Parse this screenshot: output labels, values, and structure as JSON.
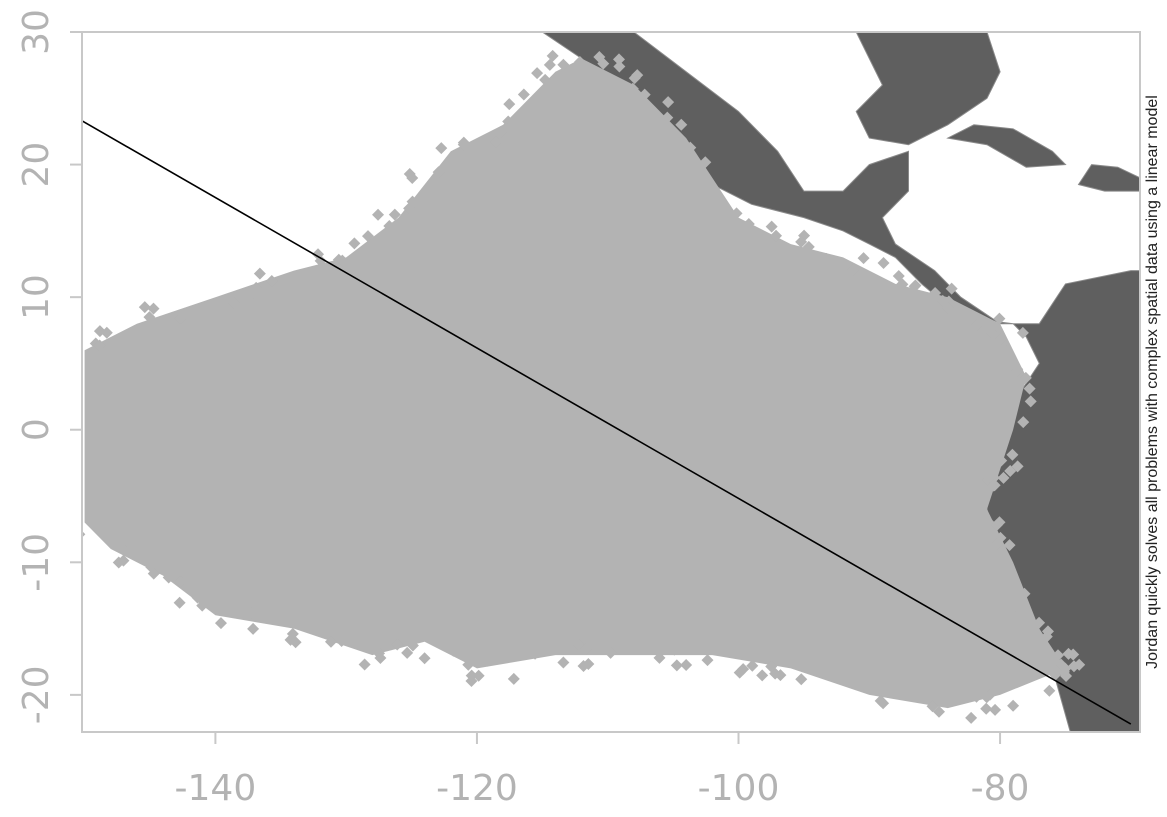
{
  "chart_data": {
    "type": "scatter",
    "title": "",
    "xlabel": "",
    "ylabel": "",
    "xlim": [
      -150.2,
      -69.3
    ],
    "ylim": [
      -22.8,
      30.0
    ],
    "xticks": [
      -140,
      -120,
      -100,
      -80
    ],
    "yticks": [
      30,
      20,
      10,
      0,
      -10,
      -20
    ],
    "x_tick_labels": [
      "-140",
      "-120",
      "-100",
      "-80"
    ],
    "y_tick_labels": [
      "30",
      "20",
      "10",
      "0",
      "-10",
      "-20"
    ],
    "grid": false,
    "point_color": "#b3b3b3",
    "land_color": "#5f5f5f",
    "line_color": "#000000",
    "background": "#ffffff",
    "points_region": {
      "description": "dense cloud of observation points over the eastern tropical Pacific",
      "top_edge": [
        [
          -150,
          6
        ],
        [
          -146,
          8
        ],
        [
          -140,
          10
        ],
        [
          -134,
          12
        ],
        [
          -130,
          13
        ],
        [
          -126,
          16
        ],
        [
          -122,
          21
        ],
        [
          -118,
          23
        ],
        [
          -114,
          27
        ],
        [
          -112,
          28
        ],
        [
          -108,
          26
        ],
        [
          -104,
          22
        ],
        [
          -100,
          16
        ],
        [
          -96,
          14
        ],
        [
          -92,
          13
        ],
        [
          -88,
          11
        ],
        [
          -84,
          10
        ],
        [
          -80,
          8
        ],
        [
          -78,
          4
        ],
        [
          -79,
          0
        ],
        [
          -80,
          -3
        ],
        [
          -81,
          -6
        ],
        [
          -79,
          -10
        ],
        [
          -77,
          -15
        ],
        [
          -75,
          -18
        ]
      ],
      "bottom_edge": [
        [
          -75,
          -18
        ],
        [
          -80,
          -20
        ],
        [
          -84,
          -21
        ],
        [
          -90,
          -20
        ],
        [
          -96,
          -18
        ],
        [
          -102,
          -17
        ],
        [
          -108,
          -17
        ],
        [
          -114,
          -17
        ],
        [
          -120,
          -18
        ],
        [
          -124,
          -16
        ],
        [
          -128,
          -17
        ],
        [
          -134,
          -15
        ],
        [
          -140,
          -14
        ],
        [
          -144,
          -11
        ],
        [
          -148,
          -9
        ],
        [
          -150,
          -7
        ]
      ]
    },
    "regression_line": {
      "label": "linear model",
      "x": [
        -150.2,
        -70.0
      ],
      "y": [
        23.3,
        -22.2
      ]
    },
    "annotation": "Jordan quickly solves all problems with complex spatial data using a linear model"
  }
}
